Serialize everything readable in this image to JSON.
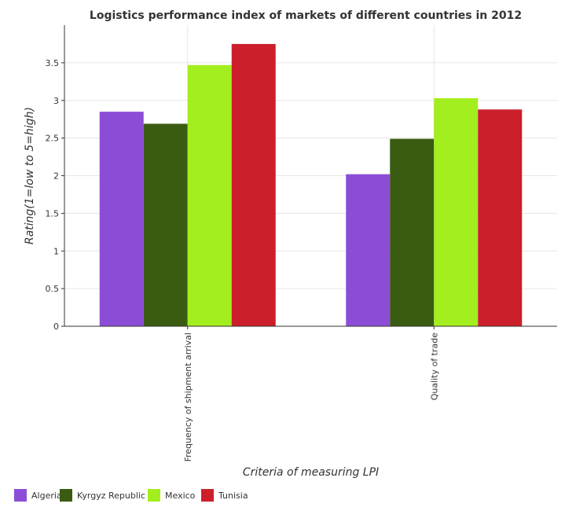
{
  "chart_data": {
    "type": "bar",
    "title": "Logistics performance index of markets of different countries in 2012",
    "xlabel": "Criteria of measuring LPI",
    "ylabel": "Rating(1=low to 5=high)",
    "categories": [
      "Frequency of shipment arrival",
      "Quality of trade"
    ],
    "series": [
      {
        "name": "Algeria",
        "color": "#8c4dd6",
        "values": [
          2.85,
          2.02
        ]
      },
      {
        "name": "Kyrgyz Republic",
        "color": "#3a5c12",
        "values": [
          2.69,
          2.49
        ]
      },
      {
        "name": "Mexico",
        "color": "#a3ee1e",
        "values": [
          3.47,
          3.03
        ]
      },
      {
        "name": "Tunisia",
        "color": "#cc1f2b",
        "values": [
          3.75,
          2.88
        ]
      }
    ],
    "ylim": [
      0,
      4
    ],
    "yticks": [
      0,
      0.5,
      1,
      1.5,
      2,
      2.5,
      3,
      3.5
    ],
    "ytick_labels": [
      "0",
      "0.5",
      "1",
      "1.5",
      "2",
      "2.5",
      "3",
      "3.5"
    ],
    "grid": true,
    "legend_position": "bottom-left"
  }
}
